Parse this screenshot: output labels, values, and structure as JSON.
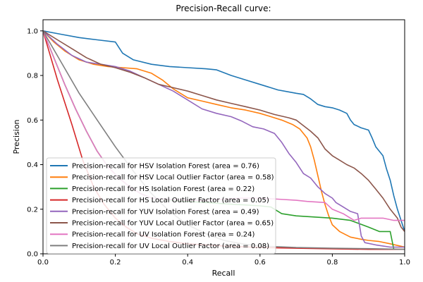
{
  "chart_data": {
    "type": "line",
    "title": "Precision-Recall curve:",
    "xlabel": "Recall",
    "ylabel": "Precision",
    "xlim": [
      0,
      1
    ],
    "ylim": [
      0,
      1.05
    ],
    "xticks": [
      "0.0",
      "0.2",
      "0.4",
      "0.6",
      "0.8",
      "1.0"
    ],
    "yticks": [
      "0.0",
      "0.2",
      "0.4",
      "0.6",
      "0.8",
      "1.0"
    ],
    "grid": false,
    "legend_position": "lower-left",
    "series": [
      {
        "name": "Precision-recall for HSV Isolation Forest (area = 0.76)",
        "color": "#1f77b4",
        "points": [
          [
            0,
            1.0
          ],
          [
            0.05,
            0.985
          ],
          [
            0.1,
            0.97
          ],
          [
            0.15,
            0.96
          ],
          [
            0.2,
            0.95
          ],
          [
            0.22,
            0.9
          ],
          [
            0.25,
            0.87
          ],
          [
            0.3,
            0.85
          ],
          [
            0.35,
            0.84
          ],
          [
            0.4,
            0.835
          ],
          [
            0.45,
            0.83
          ],
          [
            0.48,
            0.825
          ],
          [
            0.52,
            0.8
          ],
          [
            0.56,
            0.78
          ],
          [
            0.6,
            0.76
          ],
          [
            0.65,
            0.735
          ],
          [
            0.7,
            0.72
          ],
          [
            0.72,
            0.715
          ],
          [
            0.74,
            0.695
          ],
          [
            0.76,
            0.67
          ],
          [
            0.78,
            0.66
          ],
          [
            0.8,
            0.655
          ],
          [
            0.82,
            0.645
          ],
          [
            0.84,
            0.63
          ],
          [
            0.85,
            0.6
          ],
          [
            0.86,
            0.58
          ],
          [
            0.88,
            0.565
          ],
          [
            0.9,
            0.555
          ],
          [
            0.91,
            0.52
          ],
          [
            0.92,
            0.48
          ],
          [
            0.94,
            0.44
          ],
          [
            0.95,
            0.38
          ],
          [
            0.96,
            0.33
          ],
          [
            0.97,
            0.26
          ],
          [
            0.98,
            0.2
          ],
          [
            0.99,
            0.15
          ],
          [
            1.0,
            0.1
          ]
        ]
      },
      {
        "name": "Precision-recall for HSV Local Outlier Factor (area = 0.58)",
        "color": "#ff7f0e",
        "points": [
          [
            0,
            1.0
          ],
          [
            0.03,
            0.95
          ],
          [
            0.06,
            0.91
          ],
          [
            0.1,
            0.87
          ],
          [
            0.14,
            0.85
          ],
          [
            0.18,
            0.84
          ],
          [
            0.22,
            0.835
          ],
          [
            0.26,
            0.83
          ],
          [
            0.3,
            0.81
          ],
          [
            0.33,
            0.78
          ],
          [
            0.36,
            0.74
          ],
          [
            0.4,
            0.7
          ],
          [
            0.44,
            0.685
          ],
          [
            0.48,
            0.67
          ],
          [
            0.52,
            0.655
          ],
          [
            0.56,
            0.645
          ],
          [
            0.6,
            0.63
          ],
          [
            0.63,
            0.615
          ],
          [
            0.66,
            0.6
          ],
          [
            0.69,
            0.58
          ],
          [
            0.71,
            0.56
          ],
          [
            0.73,
            0.52
          ],
          [
            0.74,
            0.48
          ],
          [
            0.75,
            0.42
          ],
          [
            0.76,
            0.35
          ],
          [
            0.77,
            0.28
          ],
          [
            0.78,
            0.22
          ],
          [
            0.79,
            0.17
          ],
          [
            0.8,
            0.13
          ],
          [
            0.82,
            0.1
          ],
          [
            0.85,
            0.075
          ],
          [
            0.88,
            0.065
          ],
          [
            0.9,
            0.06
          ],
          [
            0.93,
            0.055
          ],
          [
            0.96,
            0.045
          ],
          [
            1.0,
            0.03
          ]
        ]
      },
      {
        "name": "Precision-recall for HS Isolation Forest (area = 0.22)",
        "color": "#2ca02c",
        "points": [
          [
            0,
            1.0
          ],
          [
            0.03,
            0.88
          ],
          [
            0.06,
            0.76
          ],
          [
            0.09,
            0.65
          ],
          [
            0.12,
            0.55
          ],
          [
            0.15,
            0.46
          ],
          [
            0.18,
            0.39
          ],
          [
            0.21,
            0.34
          ],
          [
            0.24,
            0.3
          ],
          [
            0.27,
            0.27
          ],
          [
            0.3,
            0.25
          ],
          [
            0.33,
            0.245
          ],
          [
            0.36,
            0.24
          ],
          [
            0.4,
            0.235
          ],
          [
            0.45,
            0.23
          ],
          [
            0.5,
            0.225
          ],
          [
            0.55,
            0.22
          ],
          [
            0.6,
            0.215
          ],
          [
            0.63,
            0.21
          ],
          [
            0.66,
            0.18
          ],
          [
            0.7,
            0.17
          ],
          [
            0.75,
            0.165
          ],
          [
            0.8,
            0.16
          ],
          [
            0.85,
            0.15
          ],
          [
            0.9,
            0.12
          ],
          [
            0.93,
            0.1
          ],
          [
            0.96,
            0.1
          ],
          [
            0.97,
            0.02
          ],
          [
            1.0,
            0.02
          ]
        ]
      },
      {
        "name": "Precision-recall for HS Local Outlier Factor (area = 0.05)",
        "color": "#d62728",
        "points": [
          [
            0,
            1.0
          ],
          [
            0.04,
            0.78
          ],
          [
            0.08,
            0.58
          ],
          [
            0.11,
            0.42
          ],
          [
            0.14,
            0.3
          ],
          [
            0.17,
            0.22
          ],
          [
            0.2,
            0.16
          ],
          [
            0.23,
            0.12
          ],
          [
            0.26,
            0.09
          ],
          [
            0.3,
            0.07
          ],
          [
            0.35,
            0.055
          ],
          [
            0.4,
            0.045
          ],
          [
            0.5,
            0.035
          ],
          [
            0.6,
            0.028
          ],
          [
            0.7,
            0.025
          ],
          [
            0.8,
            0.022
          ],
          [
            0.9,
            0.02
          ],
          [
            1.0,
            0.02
          ]
        ]
      },
      {
        "name": "Precision-recall for YUV Isolation Forest (area = 0.49)",
        "color": "#9467bd",
        "points": [
          [
            0,
            1.0
          ],
          [
            0.04,
            0.94
          ],
          [
            0.08,
            0.89
          ],
          [
            0.12,
            0.86
          ],
          [
            0.16,
            0.85
          ],
          [
            0.2,
            0.84
          ],
          [
            0.24,
            0.82
          ],
          [
            0.28,
            0.79
          ],
          [
            0.32,
            0.76
          ],
          [
            0.36,
            0.73
          ],
          [
            0.4,
            0.69
          ],
          [
            0.44,
            0.65
          ],
          [
            0.48,
            0.63
          ],
          [
            0.52,
            0.615
          ],
          [
            0.55,
            0.595
          ],
          [
            0.58,
            0.57
          ],
          [
            0.61,
            0.56
          ],
          [
            0.64,
            0.54
          ],
          [
            0.66,
            0.5
          ],
          [
            0.68,
            0.45
          ],
          [
            0.7,
            0.41
          ],
          [
            0.72,
            0.36
          ],
          [
            0.74,
            0.34
          ],
          [
            0.76,
            0.3
          ],
          [
            0.78,
            0.27
          ],
          [
            0.8,
            0.25
          ],
          [
            0.81,
            0.23
          ],
          [
            0.83,
            0.21
          ],
          [
            0.85,
            0.19
          ],
          [
            0.87,
            0.18
          ],
          [
            0.88,
            0.08
          ],
          [
            0.89,
            0.05
          ],
          [
            0.92,
            0.04
          ],
          [
            0.96,
            0.03
          ],
          [
            1.0,
            0.03
          ]
        ]
      },
      {
        "name": "Precision-recall for YUV Local Outlier Factor (area = 0.65)",
        "color": "#8c564b",
        "points": [
          [
            0,
            1.0
          ],
          [
            0.04,
            0.96
          ],
          [
            0.08,
            0.92
          ],
          [
            0.12,
            0.88
          ],
          [
            0.16,
            0.85
          ],
          [
            0.2,
            0.835
          ],
          [
            0.24,
            0.815
          ],
          [
            0.28,
            0.79
          ],
          [
            0.32,
            0.76
          ],
          [
            0.36,
            0.745
          ],
          [
            0.4,
            0.73
          ],
          [
            0.44,
            0.71
          ],
          [
            0.48,
            0.69
          ],
          [
            0.52,
            0.675
          ],
          [
            0.56,
            0.66
          ],
          [
            0.6,
            0.645
          ],
          [
            0.64,
            0.625
          ],
          [
            0.68,
            0.61
          ],
          [
            0.7,
            0.6
          ],
          [
            0.72,
            0.575
          ],
          [
            0.74,
            0.55
          ],
          [
            0.76,
            0.52
          ],
          [
            0.78,
            0.47
          ],
          [
            0.8,
            0.44
          ],
          [
            0.82,
            0.42
          ],
          [
            0.84,
            0.4
          ],
          [
            0.86,
            0.385
          ],
          [
            0.88,
            0.36
          ],
          [
            0.9,
            0.33
          ],
          [
            0.92,
            0.29
          ],
          [
            0.94,
            0.25
          ],
          [
            0.96,
            0.2
          ],
          [
            0.98,
            0.16
          ],
          [
            0.99,
            0.12
          ],
          [
            1.0,
            0.1
          ]
        ]
      },
      {
        "name": "Precision-recall for UV Isolation Forest (area = 0.24)",
        "color": "#e377c2",
        "points": [
          [
            0,
            1.0
          ],
          [
            0.03,
            0.88
          ],
          [
            0.06,
            0.76
          ],
          [
            0.09,
            0.65
          ],
          [
            0.12,
            0.55
          ],
          [
            0.15,
            0.46
          ],
          [
            0.18,
            0.39
          ],
          [
            0.21,
            0.34
          ],
          [
            0.24,
            0.3
          ],
          [
            0.27,
            0.27
          ],
          [
            0.3,
            0.25
          ],
          [
            0.34,
            0.245
          ],
          [
            0.4,
            0.24
          ],
          [
            0.45,
            0.24
          ],
          [
            0.5,
            0.245
          ],
          [
            0.55,
            0.25
          ],
          [
            0.6,
            0.25
          ],
          [
            0.65,
            0.245
          ],
          [
            0.7,
            0.24
          ],
          [
            0.73,
            0.235
          ],
          [
            0.78,
            0.23
          ],
          [
            0.8,
            0.2
          ],
          [
            0.83,
            0.18
          ],
          [
            0.86,
            0.15
          ],
          [
            0.88,
            0.16
          ],
          [
            0.91,
            0.16
          ],
          [
            0.94,
            0.16
          ],
          [
            0.97,
            0.15
          ],
          [
            1.0,
            0.15
          ]
        ]
      },
      {
        "name": "Precision-recall for UV Local Outlier Factor (area = 0.08)",
        "color": "#7f7f7f",
        "points": [
          [
            0,
            1.0
          ],
          [
            0.05,
            0.86
          ],
          [
            0.1,
            0.72
          ],
          [
            0.15,
            0.6
          ],
          [
            0.2,
            0.48
          ],
          [
            0.25,
            0.37
          ],
          [
            0.3,
            0.27
          ],
          [
            0.35,
            0.19
          ],
          [
            0.4,
            0.13
          ],
          [
            0.45,
            0.09
          ],
          [
            0.5,
            0.06
          ],
          [
            0.55,
            0.045
          ],
          [
            0.6,
            0.035
          ],
          [
            0.7,
            0.028
          ],
          [
            0.8,
            0.025
          ],
          [
            0.9,
            0.023
          ],
          [
            1.0,
            0.02
          ]
        ]
      }
    ]
  }
}
